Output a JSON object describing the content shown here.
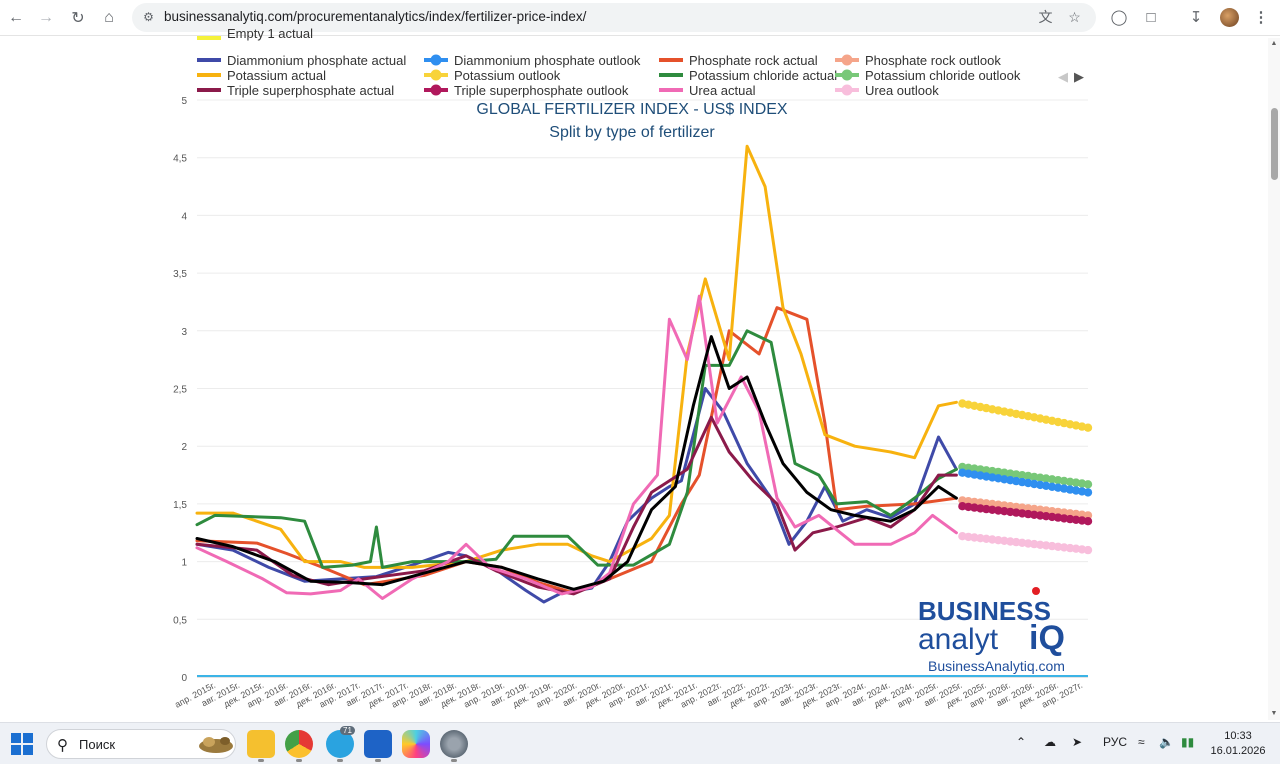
{
  "browser": {
    "url": "businessanalytiq.com/procurementanalytics/index/fertilizer-price-index/"
  },
  "taskbar": {
    "search_placeholder": "Поиск",
    "telegram_badge": "71",
    "language": "РУС",
    "time": "10:33",
    "date": "16.01.2026"
  },
  "logo": {
    "line1": "BUSINESS",
    "line2": "analyt",
    "iq": "iQ",
    "url": "BusinessAnalytiq.com"
  },
  "chart_data": {
    "type": "line",
    "title": "GLOBAL FERTILIZER INDEX - US$ INDEX",
    "subtitle": "Split by type of fertilizer",
    "ylim": [
      0,
      5
    ],
    "yticks": [
      "0",
      "0,5",
      "1",
      "1,5",
      "2",
      "2,5",
      "3",
      "3,5",
      "4",
      "4,5",
      "5"
    ],
    "grid": true,
    "legend_position": "top",
    "x_start": "2015-04",
    "x_end": "2027-09",
    "x_tick_labels": [
      "апр. 2015г.",
      "авг. 2015г.",
      "дек. 2015г.",
      "апр. 2016г.",
      "авг. 2016г.",
      "дек. 2016г.",
      "апр. 2017г.",
      "авг. 2017г.",
      "дек. 2017г.",
      "апр. 2018г.",
      "авг. 2018г.",
      "дек. 2018г.",
      "апр. 2019г.",
      "авг. 2019г.",
      "дек. 2019г.",
      "апр. 2020г.",
      "авг. 2020г.",
      "дек. 2020г.",
      "апр. 2021г.",
      "авг. 2021г.",
      "дек. 2021г.",
      "апр. 2022г.",
      "авг. 2022г.",
      "дек. 2022г.",
      "апр. 2023г.",
      "авг. 2023г.",
      "дек. 2023г.",
      "апр. 2024г.",
      "авг. 2024г.",
      "дек. 2024г.",
      "апр. 2025г.",
      "авг. 2025г.",
      "дек. 2025г.",
      "апр. 2026г.",
      "авг. 2026г.",
      "дек. 2026г.",
      "апр. 2027г."
    ],
    "legend": [
      {
        "name": "Diammonium phosphate actual",
        "color": "#3f4aa8",
        "marker": "line"
      },
      {
        "name": "Diammonium phosphate outlook",
        "color": "#2f8ff0",
        "marker": "dot"
      },
      {
        "name": "Phosphate rock actual",
        "color": "#e5512b",
        "marker": "line"
      },
      {
        "name": "Phosphate rock outlook",
        "color": "#f5a58a",
        "marker": "dot"
      },
      {
        "name": "Potassium actual",
        "color": "#f7b20f",
        "marker": "line"
      },
      {
        "name": "Potassium outlook",
        "color": "#f8d33a",
        "marker": "dot"
      },
      {
        "name": "Potassium chloride actual",
        "color": "#2e8b3e",
        "marker": "line"
      },
      {
        "name": "Potassium chloride outlook",
        "color": "#78c878",
        "marker": "dot"
      },
      {
        "name": "Triple superphosphate actual",
        "color": "#8b1a4a",
        "marker": "line"
      },
      {
        "name": "Triple superphosphate outlook",
        "color": "#b0185c",
        "marker": "dot"
      },
      {
        "name": "Urea actual",
        "color": "#f06ab5",
        "marker": "line"
      },
      {
        "name": "Urea outlook",
        "color": "#f8bedc",
        "marker": "dot"
      },
      {
        "name": "Empty 1 actual",
        "color": "#f5f23a",
        "marker": "line"
      }
    ],
    "actual_series": [
      {
        "key": "dap",
        "color": "#3f4aa8",
        "points": [
          [
            "2015-04",
            1.15
          ],
          [
            "2015-10",
            1.1
          ],
          [
            "2016-04",
            0.95
          ],
          [
            "2016-10",
            0.83
          ],
          [
            "2017-04",
            0.85
          ],
          [
            "2017-10",
            0.87
          ],
          [
            "2018-04",
            0.97
          ],
          [
            "2018-10",
            1.08
          ],
          [
            "2019-01",
            1.05
          ],
          [
            "2019-06",
            0.93
          ],
          [
            "2019-11",
            0.75
          ],
          [
            "2020-02",
            0.65
          ],
          [
            "2020-05",
            0.73
          ],
          [
            "2020-10",
            0.77
          ],
          [
            "2021-01",
            1.0
          ],
          [
            "2021-04",
            1.35
          ],
          [
            "2021-08",
            1.55
          ],
          [
            "2021-11",
            1.65
          ],
          [
            "2022-01",
            1.7
          ],
          [
            "2022-05",
            2.5
          ],
          [
            "2022-08",
            2.3
          ],
          [
            "2022-12",
            1.85
          ],
          [
            "2023-04",
            1.55
          ],
          [
            "2023-07",
            1.15
          ],
          [
            "2023-10",
            1.35
          ],
          [
            "2024-01",
            1.65
          ],
          [
            "2024-04",
            1.35
          ],
          [
            "2024-08",
            1.45
          ],
          [
            "2024-12",
            1.38
          ],
          [
            "2025-04",
            1.5
          ],
          [
            "2025-08",
            2.08
          ],
          [
            "2025-11",
            1.8
          ]
        ]
      },
      {
        "key": "phosrock",
        "color": "#e5512b",
        "points": [
          [
            "2015-04",
            1.18
          ],
          [
            "2016-02",
            1.16
          ],
          [
            "2016-07",
            1.07
          ],
          [
            "2017-01",
            0.95
          ],
          [
            "2017-08",
            0.8
          ],
          [
            "2018-06",
            0.88
          ],
          [
            "2019-01",
            1.0
          ],
          [
            "2019-07",
            0.95
          ],
          [
            "2020-01",
            0.82
          ],
          [
            "2020-07",
            0.73
          ],
          [
            "2021-01",
            0.85
          ],
          [
            "2021-08",
            1.0
          ],
          [
            "2022-01",
            1.5
          ],
          [
            "2022-04",
            1.75
          ],
          [
            "2022-09",
            3.0
          ],
          [
            "2023-02",
            2.8
          ],
          [
            "2023-05",
            3.2
          ],
          [
            "2023-10",
            3.1
          ],
          [
            "2024-01",
            2.2
          ],
          [
            "2024-03",
            1.45
          ],
          [
            "2024-08",
            1.48
          ],
          [
            "2025-04",
            1.5
          ],
          [
            "2025-11",
            1.55
          ]
        ]
      },
      {
        "key": "potassium",
        "color": "#f7b20f",
        "points": [
          [
            "2015-04",
            1.42
          ],
          [
            "2015-10",
            1.42
          ],
          [
            "2016-06",
            1.28
          ],
          [
            "2016-10",
            1.0
          ],
          [
            "2017-04",
            1.0
          ],
          [
            "2017-08",
            0.95
          ],
          [
            "2018-04",
            0.95
          ],
          [
            "2019-01",
            1.0
          ],
          [
            "2019-07",
            1.1
          ],
          [
            "2020-01",
            1.15
          ],
          [
            "2020-06",
            1.15
          ],
          [
            "2020-10",
            1.05
          ],
          [
            "2021-01",
            1.0
          ],
          [
            "2021-08",
            1.2
          ],
          [
            "2021-11",
            1.4
          ],
          [
            "2022-02",
            2.8
          ],
          [
            "2022-05",
            3.45
          ],
          [
            "2022-09",
            2.75
          ],
          [
            "2022-12",
            4.6
          ],
          [
            "2023-03",
            4.25
          ],
          [
            "2023-06",
            3.2
          ],
          [
            "2023-09",
            2.8
          ],
          [
            "2024-01",
            2.1
          ],
          [
            "2024-06",
            2.0
          ],
          [
            "2024-12",
            1.95
          ],
          [
            "2025-04",
            1.9
          ],
          [
            "2025-08",
            2.35
          ],
          [
            "2025-11",
            2.38
          ]
        ]
      },
      {
        "key": "kcl",
        "color": "#2e8b3e",
        "points": [
          [
            "2015-04",
            1.32
          ],
          [
            "2015-07",
            1.4
          ],
          [
            "2016-06",
            1.38
          ],
          [
            "2016-10",
            1.35
          ],
          [
            "2017-01",
            0.95
          ],
          [
            "2017-06",
            0.97
          ],
          [
            "2017-09",
            1.0
          ],
          [
            "2017-10",
            1.3
          ],
          [
            "2017-11",
            0.95
          ],
          [
            "2018-04",
            1.0
          ],
          [
            "2019-01",
            1.0
          ],
          [
            "2019-06",
            1.02
          ],
          [
            "2019-09",
            1.22
          ],
          [
            "2020-06",
            1.22
          ],
          [
            "2020-11",
            0.97
          ],
          [
            "2021-05",
            0.97
          ],
          [
            "2021-11",
            1.15
          ],
          [
            "2022-02",
            1.6
          ],
          [
            "2022-05",
            2.7
          ],
          [
            "2022-09",
            2.7
          ],
          [
            "2022-12",
            3.0
          ],
          [
            "2023-04",
            2.9
          ],
          [
            "2023-08",
            1.85
          ],
          [
            "2023-12",
            1.75
          ],
          [
            "2024-03",
            1.5
          ],
          [
            "2024-08",
            1.52
          ],
          [
            "2024-12",
            1.4
          ],
          [
            "2025-04",
            1.55
          ],
          [
            "2025-08",
            1.72
          ],
          [
            "2025-11",
            1.8
          ]
        ]
      },
      {
        "key": "tsp",
        "color": "#8b1a4a",
        "points": [
          [
            "2015-04",
            1.15
          ],
          [
            "2016-02",
            1.1
          ],
          [
            "2016-08",
            0.88
          ],
          [
            "2017-02",
            0.8
          ],
          [
            "2017-08",
            0.85
          ],
          [
            "2018-06",
            0.92
          ],
          [
            "2019-01",
            1.05
          ],
          [
            "2019-06",
            0.92
          ],
          [
            "2020-01",
            0.78
          ],
          [
            "2020-07",
            0.72
          ],
          [
            "2021-01",
            0.85
          ],
          [
            "2021-05",
            1.3
          ],
          [
            "2021-08",
            1.6
          ],
          [
            "2022-02",
            1.8
          ],
          [
            "2022-06",
            2.25
          ],
          [
            "2022-09",
            1.95
          ],
          [
            "2023-01",
            1.7
          ],
          [
            "2023-05",
            1.5
          ],
          [
            "2023-08",
            1.1
          ],
          [
            "2023-11",
            1.25
          ],
          [
            "2024-03",
            1.3
          ],
          [
            "2024-08",
            1.38
          ],
          [
            "2024-12",
            1.3
          ],
          [
            "2025-04",
            1.45
          ],
          [
            "2025-08",
            1.75
          ],
          [
            "2025-11",
            1.75
          ]
        ]
      },
      {
        "key": "urea",
        "color": "#f06ab5",
        "points": [
          [
            "2015-04",
            1.12
          ],
          [
            "2015-09",
            1.0
          ],
          [
            "2016-03",
            0.85
          ],
          [
            "2016-07",
            0.73
          ],
          [
            "2016-11",
            0.72
          ],
          [
            "2017-04",
            0.75
          ],
          [
            "2017-07",
            0.85
          ],
          [
            "2017-11",
            0.68
          ],
          [
            "2018-04",
            0.85
          ],
          [
            "2018-10",
            1.0
          ],
          [
            "2019-01",
            1.15
          ],
          [
            "2019-05",
            0.95
          ],
          [
            "2019-11",
            0.85
          ],
          [
            "2020-05",
            0.72
          ],
          [
            "2020-10",
            0.78
          ],
          [
            "2021-01",
            0.9
          ],
          [
            "2021-05",
            1.5
          ],
          [
            "2021-09",
            1.75
          ],
          [
            "2021-11",
            3.1
          ],
          [
            "2022-02",
            2.75
          ],
          [
            "2022-04",
            3.3
          ],
          [
            "2022-07",
            2.2
          ],
          [
            "2022-11",
            2.6
          ],
          [
            "2023-02",
            2.3
          ],
          [
            "2023-05",
            1.55
          ],
          [
            "2023-08",
            1.3
          ],
          [
            "2023-12",
            1.4
          ],
          [
            "2024-06",
            1.15
          ],
          [
            "2024-12",
            1.15
          ],
          [
            "2025-04",
            1.25
          ],
          [
            "2025-07",
            1.4
          ],
          [
            "2025-11",
            1.25
          ]
        ]
      },
      {
        "key": "index",
        "color": "#000000",
        "points": [
          [
            "2015-04",
            1.2
          ],
          [
            "2015-10",
            1.13
          ],
          [
            "2016-05",
            1.0
          ],
          [
            "2016-11",
            0.83
          ],
          [
            "2017-05",
            0.82
          ],
          [
            "2017-11",
            0.8
          ],
          [
            "2018-06",
            0.9
          ],
          [
            "2019-01",
            1.0
          ],
          [
            "2019-07",
            0.95
          ],
          [
            "2020-01",
            0.85
          ],
          [
            "2020-07",
            0.76
          ],
          [
            "2020-12",
            0.83
          ],
          [
            "2021-04",
            1.0
          ],
          [
            "2021-08",
            1.45
          ],
          [
            "2021-12",
            1.65
          ],
          [
            "2022-03",
            2.35
          ],
          [
            "2022-06",
            2.95
          ],
          [
            "2022-09",
            2.5
          ],
          [
            "2022-12",
            2.6
          ],
          [
            "2023-03",
            2.2
          ],
          [
            "2023-06",
            1.85
          ],
          [
            "2023-10",
            1.6
          ],
          [
            "2024-02",
            1.45
          ],
          [
            "2024-06",
            1.4
          ],
          [
            "2024-12",
            1.35
          ],
          [
            "2025-04",
            1.45
          ],
          [
            "2025-08",
            1.65
          ],
          [
            "2025-11",
            1.55
          ]
        ]
      }
    ],
    "outlook_series": [
      {
        "key": "potassium",
        "color": "#f8d33a",
        "start": [
          "2025-12",
          2.37
        ],
        "end": [
          "2027-09",
          2.16
        ]
      },
      {
        "key": "kcl",
        "color": "#78c878",
        "start": [
          "2025-12",
          1.82
        ],
        "end": [
          "2027-09",
          1.67
        ]
      },
      {
        "key": "dap",
        "color": "#2f8ff0",
        "start": [
          "2025-12",
          1.77
        ],
        "end": [
          "2027-09",
          1.6
        ]
      },
      {
        "key": "phosrock",
        "color": "#f5a58a",
        "start": [
          "2025-12",
          1.53
        ],
        "end": [
          "2027-09",
          1.4
        ]
      },
      {
        "key": "tsp",
        "color": "#b0185c",
        "start": [
          "2025-12",
          1.48
        ],
        "end": [
          "2027-09",
          1.35
        ]
      },
      {
        "key": "urea",
        "color": "#f8bedc",
        "start": [
          "2025-12",
          1.22
        ],
        "end": [
          "2027-09",
          1.1
        ]
      }
    ]
  }
}
